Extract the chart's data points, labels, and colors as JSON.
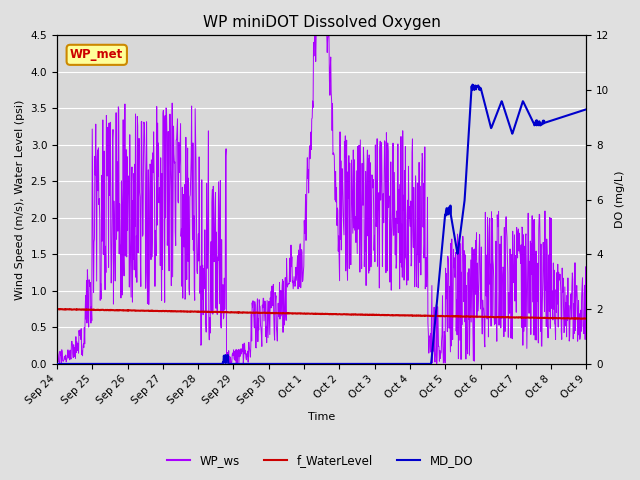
{
  "title": "WP miniDOT Dissolved Oxygen",
  "ylabel_left": "Wind Speed (m/s), Water Level (psi)",
  "ylabel_right": "DO (mg/L)",
  "xlabel": "Time",
  "ylim_left": [
    0,
    4.5
  ],
  "ylim_right": [
    0,
    12
  ],
  "yticks_left": [
    0.0,
    0.5,
    1.0,
    1.5,
    2.0,
    2.5,
    3.0,
    3.5,
    4.0,
    4.5
  ],
  "yticks_right": [
    0,
    2,
    4,
    6,
    8,
    10,
    12
  ],
  "fig_bg_color": "#e0e0e0",
  "plot_bg_color": "#d8d8d8",
  "grid_color": "#f0f0f0",
  "wp_ws_color": "#aa00ff",
  "f_waterlevel_color": "#cc0000",
  "md_do_color": "#0000cc",
  "annotation_text": "WP_met",
  "annotation_facecolor": "#ffff99",
  "annotation_edgecolor": "#cc8800",
  "annotation_textcolor": "#cc0000",
  "title_fontsize": 11,
  "axis_label_fontsize": 8,
  "tick_label_fontsize": 7.5,
  "legend_fontsize": 8.5,
  "xtick_labels": [
    "Sep 24",
    "Sep 25",
    "Sep 26",
    "Sep 27",
    "Sep 28",
    "Sep 29",
    "Sep 30",
    "Oct 1",
    "Oct 2",
    "Oct 3",
    "Oct 4",
    "Oct 5",
    "Oct 6",
    "Oct 7",
    "Oct 8",
    "Oct 9"
  ]
}
